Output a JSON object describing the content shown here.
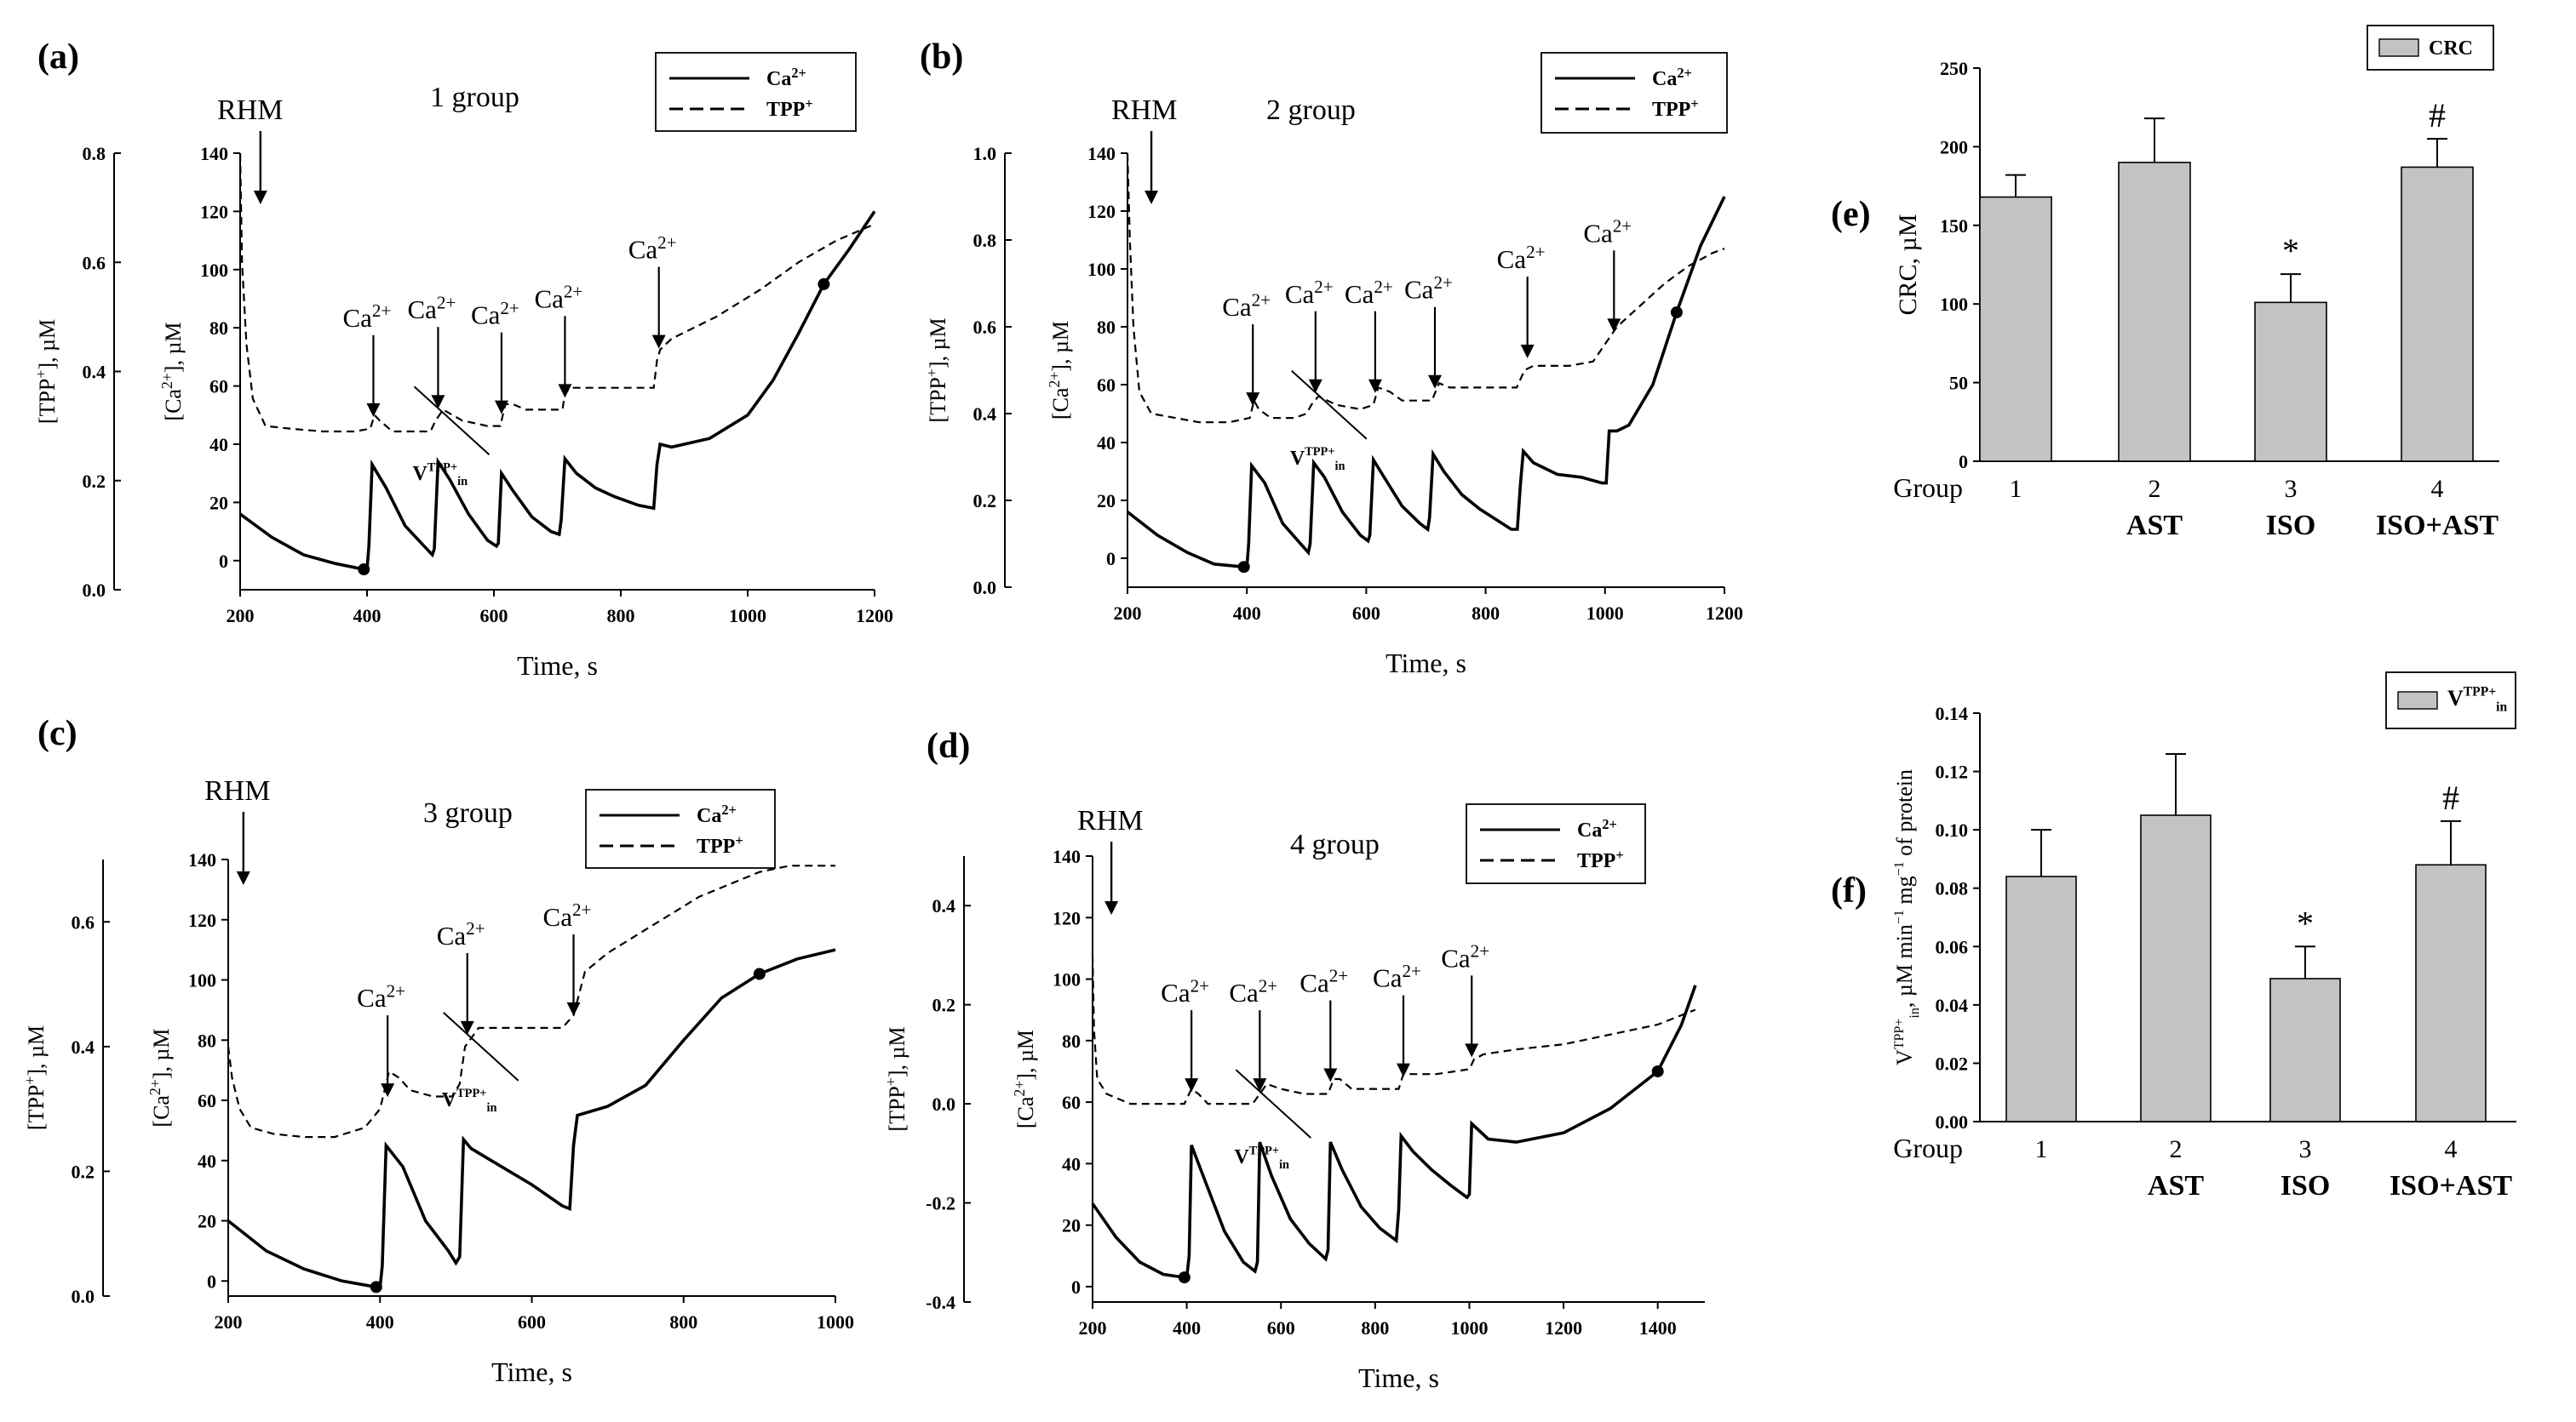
{
  "figure": {
    "panels": {
      "a": {
        "label": "(a)",
        "group_title": "1 group"
      },
      "b": {
        "label": "(b)",
        "group_title": "2 group"
      },
      "c": {
        "label": "(c)",
        "group_title": "3 group"
      },
      "d": {
        "label": "(d)",
        "group_title": "4 group"
      },
      "e": {
        "label": "(e)"
      },
      "f": {
        "label": "(f)"
      }
    },
    "annotations": {
      "rhm": "RHM",
      "ca_add": "Ca2+",
      "v_rate": "V",
      "v_sup": "TPP+",
      "v_sub": "in",
      "star": "*",
      "hash": "#"
    }
  },
  "chart_data": [
    {
      "id": "a",
      "type": "line",
      "title": "1 group",
      "xlabel": "Time, s",
      "ylabel_left": "[TPP+], µM",
      "ylabel_right": "[Ca2+], µM",
      "xlim": [
        200,
        1200
      ],
      "ylim_left": [
        0.0,
        0.8
      ],
      "ylim_right": [
        -10,
        140
      ],
      "xticks": [
        200,
        400,
        600,
        800,
        1000,
        1200
      ],
      "yticks_left": [
        0.0,
        0.2,
        0.4,
        0.6,
        0.8
      ],
      "yticks_right": [
        0,
        20,
        40,
        60,
        80,
        100,
        120,
        140
      ],
      "legend": [
        "Ca2+",
        "TPP+"
      ],
      "legend_position": "top-right",
      "rhm_time": 232,
      "ca_additions": [
        410,
        512,
        612,
        712,
        860
      ],
      "series": [
        {
          "name": "Ca2+",
          "axis": "right",
          "x": [
            200,
            250,
            300,
            350,
            395,
            400,
            403,
            408,
            430,
            460,
            490,
            503,
            506,
            512,
            530,
            560,
            590,
            604,
            607,
            612,
            630,
            660,
            690,
            703,
            706,
            712,
            730,
            760,
            790,
            828,
            852,
            857,
            862,
            880,
            940,
            1000,
            1040,
            1080,
            1120,
            1160,
            1200
          ],
          "y": [
            16,
            8,
            2,
            -1,
            -3,
            -3,
            5,
            33,
            25,
            12,
            5,
            2,
            4,
            34,
            28,
            16,
            7,
            5,
            6,
            30,
            24,
            15,
            10,
            9,
            14,
            35,
            30,
            25,
            22,
            19,
            18,
            33,
            40,
            39,
            42,
            50,
            62,
            78,
            95,
            107,
            120
          ]
        },
        {
          "name": "TPP+",
          "axis": "left",
          "x": [
            200,
            203,
            210,
            220,
            240,
            280,
            330,
            380,
            405,
            412,
            420,
            440,
            480,
            500,
            508,
            520,
            550,
            590,
            610,
            618,
            630,
            650,
            690,
            708,
            712,
            720,
            800,
            852,
            857,
            862,
            880,
            950,
            1020,
            1080,
            1140,
            1200
          ],
          "y": [
            0.8,
            0.6,
            0.45,
            0.35,
            0.3,
            0.295,
            0.29,
            0.29,
            0.295,
            0.32,
            0.31,
            0.29,
            0.29,
            0.29,
            0.31,
            0.33,
            0.31,
            0.3,
            0.3,
            0.34,
            0.34,
            0.33,
            0.33,
            0.33,
            0.36,
            0.37,
            0.37,
            0.37,
            0.42,
            0.44,
            0.46,
            0.5,
            0.55,
            0.6,
            0.64,
            0.67
          ]
        }
      ]
    },
    {
      "id": "b",
      "type": "line",
      "title": "2 group",
      "xlabel": "Time, s",
      "ylabel_left": "[TPP+], µM",
      "ylabel_right": "[Ca2+], µM",
      "xlim": [
        200,
        1200
      ],
      "ylim_left": [
        0.0,
        1.0
      ],
      "ylim_right": [
        -10,
        140
      ],
      "xticks": [
        200,
        400,
        600,
        800,
        1000,
        1200
      ],
      "yticks_left": [
        0.0,
        0.2,
        0.4,
        0.6,
        0.8,
        1.0
      ],
      "yticks_right": [
        0,
        20,
        40,
        60,
        80,
        100,
        120,
        140
      ],
      "legend": [
        "Ca2+",
        "TPP+"
      ],
      "legend_position": "top-right",
      "rhm_time": 240,
      "ca_additions": [
        410,
        515,
        615,
        715,
        870,
        1015
      ],
      "series": [
        {
          "name": "Ca2+",
          "axis": "right",
          "x": [
            200,
            250,
            300,
            345,
            395,
            400,
            403,
            408,
            430,
            460,
            490,
            503,
            506,
            512,
            530,
            560,
            590,
            603,
            606,
            612,
            630,
            660,
            690,
            703,
            706,
            712,
            730,
            760,
            790,
            843,
            853,
            858,
            863,
            880,
            920,
            960,
            995,
            1002,
            1007,
            1020,
            1040,
            1080,
            1120,
            1160,
            1200
          ],
          "y": [
            16,
            8,
            2,
            -2,
            -3,
            -3,
            5,
            32,
            26,
            12,
            5,
            2,
            5,
            33,
            28,
            16,
            8,
            6,
            8,
            34,
            28,
            18,
            12,
            10,
            14,
            36,
            30,
            22,
            17,
            10,
            10,
            25,
            37,
            33,
            29,
            28,
            26,
            26,
            44,
            44,
            46,
            60,
            85,
            108,
            125
          ]
        },
        {
          "name": "TPP+",
          "axis": "left",
          "x": [
            200,
            204,
            210,
            220,
            240,
            280,
            320,
            370,
            405,
            412,
            420,
            440,
            480,
            500,
            508,
            520,
            550,
            590,
            612,
            620,
            640,
            660,
            690,
            710,
            722,
            740,
            800,
            852,
            865,
            880,
            940,
            980,
            1000,
            1020,
            1060,
            1100,
            1140,
            1180,
            1200
          ],
          "y": [
            1.0,
            0.8,
            0.6,
            0.45,
            0.4,
            0.39,
            0.38,
            0.38,
            0.39,
            0.43,
            0.41,
            0.39,
            0.39,
            0.4,
            0.42,
            0.44,
            0.42,
            0.41,
            0.42,
            0.46,
            0.45,
            0.43,
            0.43,
            0.43,
            0.47,
            0.46,
            0.46,
            0.46,
            0.5,
            0.51,
            0.51,
            0.52,
            0.56,
            0.6,
            0.65,
            0.7,
            0.74,
            0.77,
            0.78
          ]
        }
      ]
    },
    {
      "id": "c",
      "type": "line",
      "title": "3 group",
      "xlabel": "Time, s",
      "ylabel_left": "[TPP+], µM",
      "ylabel_right": "[Ca2+], µM",
      "xlim": [
        200,
        1000
      ],
      "ylim_left": [
        0.0,
        0.7
      ],
      "ylim_right": [
        -5,
        140
      ],
      "xticks": [
        200,
        400,
        600,
        800,
        1000
      ],
      "yticks_left": [
        0.0,
        0.2,
        0.4,
        0.6
      ],
      "yticks_right": [
        0,
        20,
        40,
        60,
        80,
        100,
        120,
        140
      ],
      "legend": [
        "Ca2+",
        "TPP+"
      ],
      "legend_position": "top-right",
      "rhm_time": 220,
      "ca_additions": [
        410,
        515,
        655
      ],
      "series": [
        {
          "name": "Ca2+",
          "axis": "right",
          "x": [
            200,
            250,
            300,
            350,
            395,
            400,
            403,
            408,
            430,
            460,
            490,
            500,
            505,
            510,
            520,
            560,
            600,
            640,
            650,
            655,
            660,
            700,
            750,
            800,
            850,
            900,
            950,
            1000
          ],
          "y": [
            20,
            10,
            4,
            0,
            -2,
            -2,
            5,
            45,
            38,
            20,
            10,
            6,
            8,
            47,
            44,
            38,
            32,
            25,
            24,
            45,
            55,
            58,
            65,
            80,
            94,
            102,
            107,
            110
          ]
        },
        {
          "name": "TPP+",
          "axis": "left",
          "x": [
            200,
            205,
            215,
            230,
            260,
            300,
            340,
            380,
            400,
            412,
            425,
            440,
            470,
            495,
            505,
            512,
            530,
            560,
            600,
            640,
            655,
            670,
            700,
            740,
            780,
            820,
            860,
            900,
            940,
            1000
          ],
          "y": [
            0.4,
            0.35,
            0.3,
            0.27,
            0.26,
            0.255,
            0.255,
            0.27,
            0.3,
            0.36,
            0.35,
            0.33,
            0.32,
            0.32,
            0.34,
            0.4,
            0.43,
            0.43,
            0.43,
            0.43,
            0.45,
            0.52,
            0.55,
            0.58,
            0.61,
            0.64,
            0.66,
            0.68,
            0.69,
            0.69
          ]
        }
      ]
    },
    {
      "id": "d",
      "type": "line",
      "title": "4 group",
      "xlabel": "Time, s",
      "ylabel_left": "[TPP+], µM",
      "ylabel_right": "[Ca2+], µM",
      "xlim": [
        200,
        1500
      ],
      "ylim_left": [
        -0.4,
        0.5
      ],
      "ylim_right": [
        -5,
        140
      ],
      "xticks": [
        200,
        400,
        600,
        800,
        1000,
        1200,
        1400
      ],
      "yticks_left": [
        -0.4,
        -0.2,
        0.0,
        0.2,
        0.4
      ],
      "yticks_right": [
        0,
        20,
        40,
        60,
        80,
        100,
        120,
        140
      ],
      "legend": [
        "Ca2+",
        "TPP+"
      ],
      "legend_position": "top-right",
      "rhm_time": 240,
      "ca_additions": [
        410,
        555,
        705,
        860,
        1005
      ],
      "series": [
        {
          "name": "Ca2+",
          "axis": "right",
          "x": [
            200,
            250,
            300,
            350,
            395,
            400,
            405,
            410,
            440,
            480,
            520,
            545,
            550,
            555,
            580,
            620,
            660,
            695,
            700,
            705,
            730,
            770,
            810,
            845,
            850,
            855,
            880,
            920,
            960,
            995,
            1000,
            1005,
            1040,
            1100,
            1200,
            1300,
            1400,
            1450,
            1480
          ],
          "y": [
            27,
            16,
            8,
            4,
            3,
            3,
            10,
            46,
            34,
            18,
            8,
            5,
            8,
            47,
            36,
            22,
            14,
            9,
            12,
            47,
            38,
            26,
            19,
            15,
            25,
            49,
            44,
            38,
            33,
            29,
            30,
            53,
            48,
            47,
            50,
            58,
            70,
            85,
            98
          ]
        },
        {
          "name": "TPP+",
          "axis": "left",
          "x": [
            200,
            203,
            210,
            230,
            280,
            340,
            395,
            410,
            425,
            445,
            480,
            540,
            555,
            570,
            600,
            650,
            700,
            712,
            725,
            750,
            800,
            850,
            860,
            875,
            930,
            1000,
            1010,
            1030,
            1100,
            1200,
            1300,
            1400,
            1480
          ],
          "y": [
            0.3,
            0.15,
            0.05,
            0.02,
            0.0,
            0.0,
            0.0,
            0.03,
            0.02,
            0.0,
            0.0,
            0.0,
            0.02,
            0.04,
            0.03,
            0.02,
            0.02,
            0.05,
            0.05,
            0.03,
            0.03,
            0.03,
            0.06,
            0.06,
            0.06,
            0.07,
            0.09,
            0.1,
            0.11,
            0.12,
            0.14,
            0.16,
            0.19
          ]
        }
      ]
    },
    {
      "id": "e",
      "type": "bar",
      "title": "",
      "xlabel": "Group",
      "ylabel": "CRC, µM",
      "ylim": [
        0,
        250
      ],
      "yticks": [
        0,
        50,
        100,
        150,
        200,
        250
      ],
      "categories": [
        "1",
        "2",
        "3",
        "4"
      ],
      "category_sublabels": [
        "",
        "AST",
        "ISO",
        "ISO+AST"
      ],
      "values": [
        168,
        190,
        101,
        187
      ],
      "errors": [
        14,
        28,
        18,
        18
      ],
      "significance": [
        "",
        "",
        "*",
        "#"
      ],
      "legend": [
        "CRC"
      ],
      "legend_position": "top-right"
    },
    {
      "id": "f",
      "type": "bar",
      "title": "",
      "xlabel": "Group",
      "ylabel": "VTPP+in, µM min−1 mg−1 of protein",
      "ylim": [
        0,
        0.14
      ],
      "yticks": [
        0.0,
        0.02,
        0.04,
        0.06,
        0.08,
        0.1,
        0.12,
        0.14
      ],
      "categories": [
        "1",
        "2",
        "3",
        "4"
      ],
      "category_sublabels": [
        "",
        "AST",
        "ISO",
        "ISO+AST"
      ],
      "values": [
        0.084,
        0.105,
        0.049,
        0.088
      ],
      "errors": [
        0.016,
        0.021,
        0.011,
        0.015
      ],
      "significance": [
        "",
        "",
        "*",
        "#"
      ],
      "legend": [
        "VTPP+in"
      ],
      "legend_position": "top-right"
    }
  ]
}
